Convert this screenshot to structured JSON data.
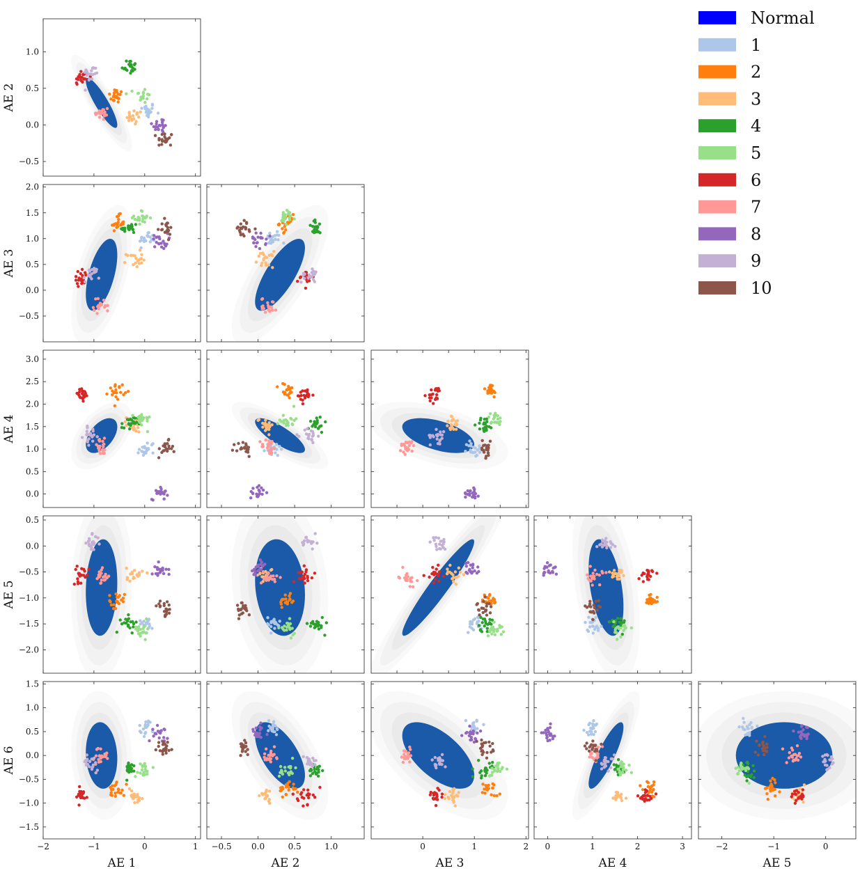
{
  "chart_data": {
    "type": "corner-scatter",
    "title": "",
    "variables": [
      "AE 1",
      "AE 2",
      "AE 3",
      "AE 4",
      "AE 5",
      "AE 6"
    ],
    "ranges": [
      [
        -2,
        1.1
      ],
      [
        -0.7,
        1.45
      ],
      [
        -1.0,
        2.05
      ],
      [
        -0.3,
        3.2
      ],
      [
        -2.45,
        0.58
      ],
      [
        -1.75,
        1.55
      ]
    ],
    "ticks": [
      [
        {
          "v": -2,
          "t": "−2"
        },
        {
          "v": -1,
          "t": "−1"
        },
        {
          "v": 0,
          "t": "0"
        },
        {
          "v": 1,
          "t": "1"
        }
      ],
      [
        {
          "v": -0.5,
          "t": "−0.5"
        },
        {
          "v": 0,
          "t": "0.0"
        },
        {
          "v": 0.5,
          "t": "0.5"
        },
        {
          "v": 1,
          "t": "1.0"
        }
      ],
      [
        {
          "v": -0.5,
          "t": "−0.5"
        },
        {
          "v": 0,
          "t": "0.0"
        },
        {
          "v": 0.5,
          "t": "0.5"
        },
        {
          "v": 1,
          "t": "1.0"
        },
        {
          "v": 1.5,
          "t": "1.5"
        },
        {
          "v": 2,
          "t": "2.0"
        }
      ],
      [
        {
          "v": 0,
          "t": "0.0"
        },
        {
          "v": 0.5,
          "t": "0.5"
        },
        {
          "v": 1,
          "t": "1.0"
        },
        {
          "v": 1.5,
          "t": "1.5"
        },
        {
          "v": 2,
          "t": "2.0"
        },
        {
          "v": 2.5,
          "t": "2.5"
        },
        {
          "v": 3,
          "t": "3.0"
        }
      ],
      [
        {
          "v": -2,
          "t": "−2.0"
        },
        {
          "v": -1.5,
          "t": "−1.5"
        },
        {
          "v": -1,
          "t": "−1.0"
        },
        {
          "v": -0.5,
          "t": "−0.5"
        },
        {
          "v": 0,
          "t": "0.0"
        },
        {
          "v": 0.5,
          "t": "0.5"
        }
      ],
      [
        {
          "v": -1.5,
          "t": "−1.5"
        },
        {
          "v": -1,
          "t": "−1.0"
        },
        {
          "v": -0.5,
          "t": "−0.5"
        },
        {
          "v": 0,
          "t": "0.0"
        },
        {
          "v": 0.5,
          "t": "0.5"
        },
        {
          "v": 1,
          "t": "1.0"
        },
        {
          "v": 1.5,
          "t": "1.5"
        }
      ]
    ],
    "bottom_ticks": [
      [
        {
          "v": -2,
          "t": "−2"
        },
        {
          "v": -1,
          "t": "−1"
        },
        {
          "v": 0,
          "t": "0"
        },
        {
          "v": 1,
          "t": "1"
        }
      ],
      [
        {
          "v": -0.5,
          "t": "−0.5"
        },
        {
          "v": 0,
          "t": "0.0"
        },
        {
          "v": 0.5,
          "t": "0.5"
        },
        {
          "v": 1,
          "t": "1.0"
        }
      ],
      [
        {
          "v": 0,
          "t": "0"
        },
        {
          "v": 1,
          "t": "1"
        },
        {
          "v": 2,
          "t": "2"
        }
      ],
      [
        {
          "v": 0,
          "t": "0"
        },
        {
          "v": 1,
          "t": "1"
        },
        {
          "v": 2,
          "t": "2"
        },
        {
          "v": 3,
          "t": "3"
        }
      ],
      [
        {
          "v": -2,
          "t": "−2"
        },
        {
          "v": -1,
          "t": "−1"
        },
        {
          "v": 0,
          "t": "0"
        }
      ]
    ],
    "normal": {
      "name": "Normal",
      "mean": [
        -0.85,
        0.3,
        0.3,
        1.3,
        -0.8,
        0.0
      ],
      "std": [
        0.2,
        0.22,
        0.45,
        0.25,
        0.6,
        0.45
      ],
      "correlations": [
        [
          1,
          -0.88,
          0.55,
          0.5,
          0.1,
          -0.1
        ],
        [
          -0.88,
          1,
          0.75,
          -0.8,
          -0.15,
          -0.6
        ],
        [
          0.55,
          0.75,
          1,
          -0.5,
          0.95,
          -0.6
        ],
        [
          0.5,
          -0.8,
          -0.5,
          1,
          -0.4,
          0.85
        ],
        [
          0.1,
          -0.15,
          0.95,
          -0.4,
          1,
          0.0
        ],
        [
          -0.1,
          -0.6,
          -0.6,
          0.85,
          0.0,
          1
        ]
      ]
    },
    "clusters": [
      {
        "label": "1",
        "color": "#aec7e8",
        "center": [
          0.05,
          0.2,
          1.0,
          1.0,
          -1.5,
          0.6
        ]
      },
      {
        "label": "2",
        "color": "#ff7f0e",
        "center": [
          -0.55,
          0.4,
          1.3,
          2.3,
          -1.05,
          -0.7
        ]
      },
      {
        "label": "3",
        "color": "#ffbb78",
        "center": [
          -0.2,
          0.1,
          0.6,
          1.55,
          -0.55,
          -0.85
        ]
      },
      {
        "label": "4",
        "color": "#2ca02c",
        "center": [
          -0.3,
          0.8,
          1.2,
          1.55,
          -1.5,
          -0.3
        ]
      },
      {
        "label": "5",
        "color": "#98df8a",
        "center": [
          -0.05,
          0.4,
          1.4,
          1.65,
          -1.6,
          -0.3
        ]
      },
      {
        "label": "6",
        "color": "#d62728",
        "center": [
          -1.25,
          0.65,
          0.25,
          2.2,
          -0.55,
          -0.85
        ]
      },
      {
        "label": "7",
        "color": "#ff9896",
        "center": [
          -0.85,
          0.15,
          -0.3,
          1.05,
          -0.6,
          0.0
        ]
      },
      {
        "label": "8",
        "color": "#9467bd",
        "center": [
          0.3,
          0.0,
          0.95,
          0.05,
          -0.45,
          0.45
        ]
      },
      {
        "label": "9",
        "color": "#c5b0d5",
        "center": [
          -1.05,
          0.7,
          0.3,
          1.3,
          0.05,
          -0.15
        ]
      },
      {
        "label": "10",
        "color": "#8c564b",
        "center": [
          0.4,
          -0.2,
          1.2,
          1.0,
          -1.2,
          0.15
        ]
      }
    ],
    "normal_color": "#0000ff",
    "cloud_color": "#1a5aa8",
    "legend_position": "top-right"
  },
  "legend": [
    {
      "label": "Normal",
      "color": "#0000ff"
    },
    {
      "label": "1",
      "color": "#aec7e8"
    },
    {
      "label": "2",
      "color": "#ff7f0e"
    },
    {
      "label": "3",
      "color": "#ffbb78"
    },
    {
      "label": "4",
      "color": "#2ca02c"
    },
    {
      "label": "5",
      "color": "#98df8a"
    },
    {
      "label": "6",
      "color": "#d62728"
    },
    {
      "label": "7",
      "color": "#ff9896"
    },
    {
      "label": "8",
      "color": "#9467bd"
    },
    {
      "label": "9",
      "color": "#c5b0d5"
    },
    {
      "label": "10",
      "color": "#8c564b"
    }
  ]
}
